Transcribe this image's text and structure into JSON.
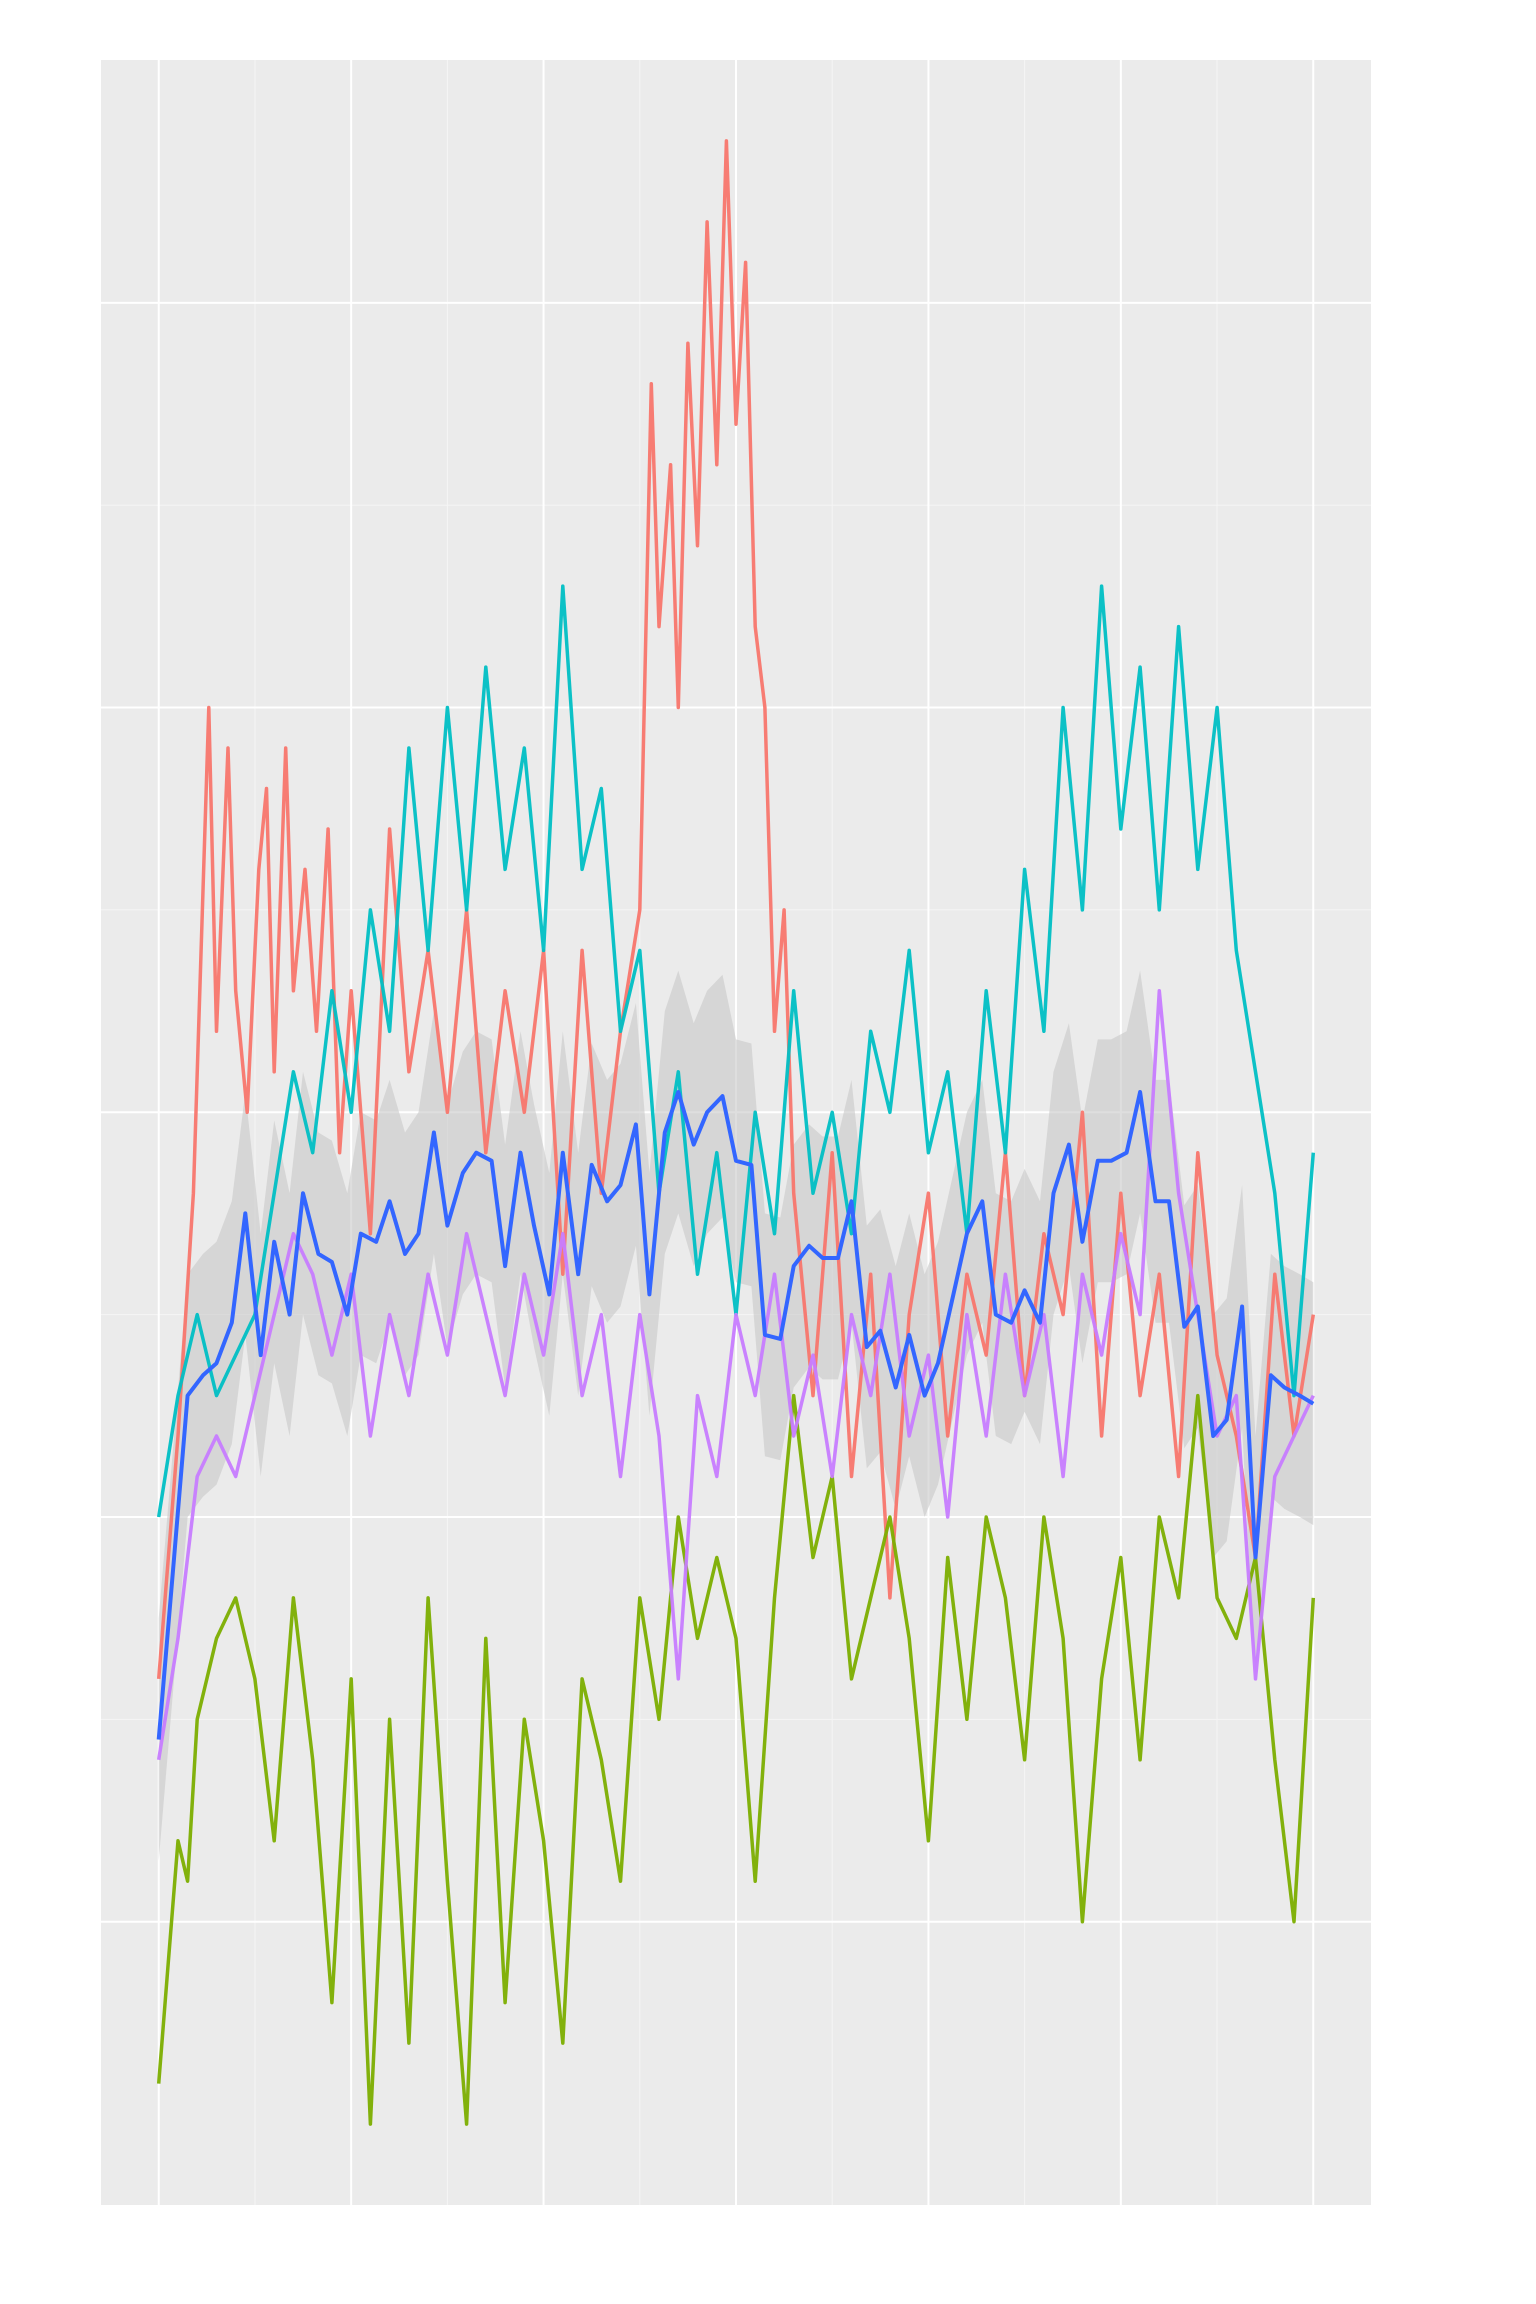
{
  "chart_data": {
    "type": "line",
    "title": "",
    "xlabel": "",
    "ylabel": "",
    "grid": true,
    "legend": "none",
    "xlim": [
      -0.3,
      6.3
    ],
    "ylim": [
      -1.7,
      3.6
    ],
    "x_breaks": [
      0,
      1,
      2,
      3,
      4,
      5,
      6
    ],
    "y_breaks": [
      -1,
      0,
      1,
      2,
      3
    ],
    "series": [
      {
        "color": "#f8766d",
        "x": [
          0,
          0.1,
          0.18,
          0.22,
          0.26,
          0.3,
          0.36,
          0.4,
          0.46,
          0.52,
          0.56,
          0.6,
          0.66,
          0.7,
          0.76,
          0.82,
          0.88,
          0.94,
          1.0,
          1.1,
          1.2,
          1.3,
          1.4,
          1.5,
          1.6,
          1.7,
          1.8,
          1.9,
          2.0,
          2.1,
          2.2,
          2.3,
          2.4,
          2.5,
          2.56,
          2.6,
          2.66,
          2.7,
          2.75,
          2.8,
          2.85,
          2.9,
          2.95,
          3.0,
          3.05,
          3.1,
          3.15,
          3.2,
          3.25,
          3.3,
          3.4,
          3.5,
          3.6,
          3.7,
          3.8,
          3.9,
          4.0,
          4.1,
          4.2,
          4.3,
          4.4,
          4.5,
          4.6,
          4.7,
          4.8,
          4.9,
          5.0,
          5.1,
          5.2,
          5.3,
          5.4,
          5.5,
          5.6,
          5.7,
          5.8,
          5.9,
          6.0
        ],
        "y": [
          -0.4,
          0.2,
          0.8,
          1.4,
          2.0,
          1.2,
          1.9,
          1.3,
          1.0,
          1.6,
          1.8,
          1.1,
          1.9,
          1.3,
          1.6,
          1.2,
          1.7,
          0.9,
          1.3,
          0.7,
          1.7,
          1.1,
          1.4,
          1.0,
          1.5,
          0.9,
          1.3,
          1.0,
          1.4,
          0.6,
          1.4,
          0.8,
          1.2,
          1.5,
          2.8,
          2.2,
          2.6,
          2.0,
          2.9,
          2.4,
          3.2,
          2.6,
          3.4,
          2.7,
          3.1,
          2.2,
          2.0,
          1.2,
          1.5,
          0.8,
          0.3,
          0.9,
          0.1,
          0.6,
          -0.2,
          0.5,
          0.8,
          0.2,
          0.6,
          0.4,
          0.9,
          0.3,
          0.7,
          0.5,
          1.0,
          0.2,
          0.8,
          0.3,
          0.6,
          0.1,
          0.9,
          0.4,
          0.2,
          -0.1,
          0.6,
          0.2,
          0.5
        ]
      },
      {
        "color": "#7cae00",
        "x": [
          0,
          0.05,
          0.1,
          0.15,
          0.2,
          0.3,
          0.4,
          0.5,
          0.6,
          0.7,
          0.8,
          0.9,
          1.0,
          1.1,
          1.2,
          1.3,
          1.4,
          1.5,
          1.6,
          1.7,
          1.8,
          1.9,
          2.0,
          2.1,
          2.2,
          2.3,
          2.4,
          2.5,
          2.6,
          2.7,
          2.8,
          2.9,
          3.0,
          3.1,
          3.2,
          3.3,
          3.4,
          3.5,
          3.6,
          3.7,
          3.8,
          3.9,
          4.0,
          4.1,
          4.2,
          4.3,
          4.4,
          4.5,
          4.6,
          4.7,
          4.8,
          4.9,
          5.0,
          5.1,
          5.2,
          5.3,
          5.4,
          5.5,
          5.6,
          5.7,
          5.8,
          5.9,
          6.0
        ],
        "y": [
          -1.4,
          -1.1,
          -0.8,
          -0.9,
          -0.5,
          -0.3,
          -0.2,
          -0.4,
          -0.8,
          -0.2,
          -0.6,
          -1.2,
          -0.4,
          -1.5,
          -0.5,
          -1.3,
          -0.2,
          -0.9,
          -1.5,
          -0.3,
          -1.2,
          -0.5,
          -0.8,
          -1.3,
          -0.4,
          -0.6,
          -0.9,
          -0.2,
          -0.5,
          0.0,
          -0.3,
          -0.1,
          -0.3,
          -0.9,
          -0.2,
          0.3,
          -0.1,
          0.1,
          -0.4,
          -0.2,
          0.0,
          -0.3,
          -0.8,
          -0.1,
          -0.5,
          0.0,
          -0.2,
          -0.6,
          0.0,
          -0.3,
          -1.0,
          -0.4,
          -0.1,
          -0.6,
          0.0,
          -0.2,
          0.3,
          -0.2,
          -0.3,
          -0.1,
          -0.6,
          -1.0,
          -0.2
        ]
      },
      {
        "color": "#00bfc4",
        "x": [
          0,
          0.1,
          0.2,
          0.3,
          0.4,
          0.5,
          0.6,
          0.7,
          0.8,
          0.9,
          1.0,
          1.1,
          1.2,
          1.3,
          1.4,
          1.5,
          1.6,
          1.7,
          1.8,
          1.9,
          2.0,
          2.1,
          2.2,
          2.3,
          2.4,
          2.5,
          2.6,
          2.7,
          2.8,
          2.9,
          3.0,
          3.1,
          3.2,
          3.3,
          3.4,
          3.5,
          3.6,
          3.7,
          3.8,
          3.9,
          4.0,
          4.1,
          4.2,
          4.3,
          4.4,
          4.5,
          4.6,
          4.7,
          4.8,
          4.9,
          5.0,
          5.1,
          5.2,
          5.3,
          5.4,
          5.5,
          5.6,
          5.7,
          5.8,
          5.9,
          6.0
        ],
        "y": [
          0.0,
          0.3,
          0.5,
          0.3,
          0.4,
          0.5,
          0.8,
          1.1,
          0.9,
          1.3,
          1.0,
          1.5,
          1.2,
          1.9,
          1.4,
          2.0,
          1.5,
          2.1,
          1.6,
          1.9,
          1.4,
          2.3,
          1.6,
          1.8,
          1.2,
          1.4,
          0.8,
          1.1,
          0.6,
          0.9,
          0.5,
          1.0,
          0.7,
          1.3,
          0.8,
          1.0,
          0.7,
          1.2,
          1.0,
          1.4,
          0.9,
          1.1,
          0.7,
          1.3,
          0.9,
          1.6,
          1.2,
          2.0,
          1.5,
          2.3,
          1.7,
          2.1,
          1.5,
          2.2,
          1.6,
          2.0,
          1.4,
          1.1,
          0.8,
          0.3,
          0.9
        ]
      },
      {
        "color": "#c77cff",
        "x": [
          0,
          0.1,
          0.2,
          0.3,
          0.4,
          0.5,
          0.6,
          0.7,
          0.8,
          0.9,
          1.0,
          1.1,
          1.2,
          1.3,
          1.4,
          1.5,
          1.6,
          1.7,
          1.8,
          1.9,
          2.0,
          2.1,
          2.2,
          2.3,
          2.4,
          2.5,
          2.6,
          2.7,
          2.8,
          2.9,
          3.0,
          3.1,
          3.2,
          3.3,
          3.4,
          3.5,
          3.6,
          3.7,
          3.8,
          3.9,
          4.0,
          4.1,
          4.2,
          4.3,
          4.4,
          4.5,
          4.6,
          4.7,
          4.8,
          4.9,
          5.0,
          5.1,
          5.2,
          5.3,
          5.4,
          5.5,
          5.6,
          5.7,
          5.8,
          5.9,
          6.0
        ],
        "y": [
          -0.6,
          -0.3,
          0.1,
          0.2,
          0.1,
          0.3,
          0.5,
          0.7,
          0.6,
          0.4,
          0.6,
          0.2,
          0.5,
          0.3,
          0.6,
          0.4,
          0.7,
          0.5,
          0.3,
          0.6,
          0.4,
          0.7,
          0.3,
          0.5,
          0.1,
          0.5,
          0.2,
          -0.4,
          0.3,
          0.1,
          0.5,
          0.3,
          0.6,
          0.2,
          0.4,
          0.1,
          0.5,
          0.3,
          0.6,
          0.2,
          0.4,
          0.0,
          0.5,
          0.2,
          0.6,
          0.3,
          0.5,
          0.1,
          0.6,
          0.4,
          0.7,
          0.5,
          1.3,
          0.8,
          0.5,
          0.2,
          0.3,
          -0.4,
          0.1,
          0.2,
          0.3
        ]
      }
    ],
    "smooth": {
      "color": "#3366ff",
      "band_color": "#c8c8c8",
      "x": [
        0,
        0.08,
        0.15,
        0.23,
        0.3,
        0.38,
        0.45,
        0.53,
        0.6,
        0.68,
        0.75,
        0.83,
        0.9,
        0.98,
        1.05,
        1.13,
        1.2,
        1.28,
        1.35,
        1.43,
        1.5,
        1.58,
        1.65,
        1.73,
        1.8,
        1.88,
        1.95,
        2.03,
        2.1,
        2.18,
        2.25,
        2.33,
        2.4,
        2.48,
        2.55,
        2.63,
        2.7,
        2.78,
        2.85,
        2.93,
        3.0,
        3.08,
        3.15,
        3.23,
        3.3,
        3.38,
        3.45,
        3.53,
        3.6,
        3.68,
        3.75,
        3.83,
        3.9,
        3.98,
        4.05,
        4.13,
        4.2,
        4.28,
        4.35,
        4.43,
        4.5,
        4.58,
        4.65,
        4.73,
        4.8,
        4.88,
        4.95,
        5.03,
        5.1,
        5.18,
        5.25,
        5.33,
        5.4,
        5.48,
        5.55,
        5.63,
        5.7,
        5.78,
        5.85,
        5.93,
        6.0
      ],
      "y": [
        -0.55,
        -0.1,
        0.3,
        0.35,
        0.38,
        0.48,
        0.75,
        0.4,
        0.68,
        0.5,
        0.8,
        0.65,
        0.63,
        0.5,
        0.7,
        0.68,
        0.78,
        0.65,
        0.7,
        0.95,
        0.72,
        0.85,
        0.9,
        0.88,
        0.62,
        0.9,
        0.72,
        0.55,
        0.9,
        0.6,
        0.87,
        0.78,
        0.82,
        0.97,
        0.55,
        0.95,
        1.05,
        0.92,
        1.0,
        1.04,
        0.88,
        0.87,
        0.45,
        0.44,
        0.62,
        0.67,
        0.64,
        0.64,
        0.78,
        0.42,
        0.46,
        0.32,
        0.45,
        0.3,
        0.38,
        0.55,
        0.7,
        0.78,
        0.5,
        0.48,
        0.56,
        0.48,
        0.8,
        0.92,
        0.68,
        0.88,
        0.88,
        0.9,
        1.05,
        0.78,
        0.78,
        0.47,
        0.52,
        0.2,
        0.24,
        0.52,
        -0.1,
        0.35,
        0.32,
        0.3,
        0.28
      ],
      "band_halfwidth": 0.3
    }
  }
}
